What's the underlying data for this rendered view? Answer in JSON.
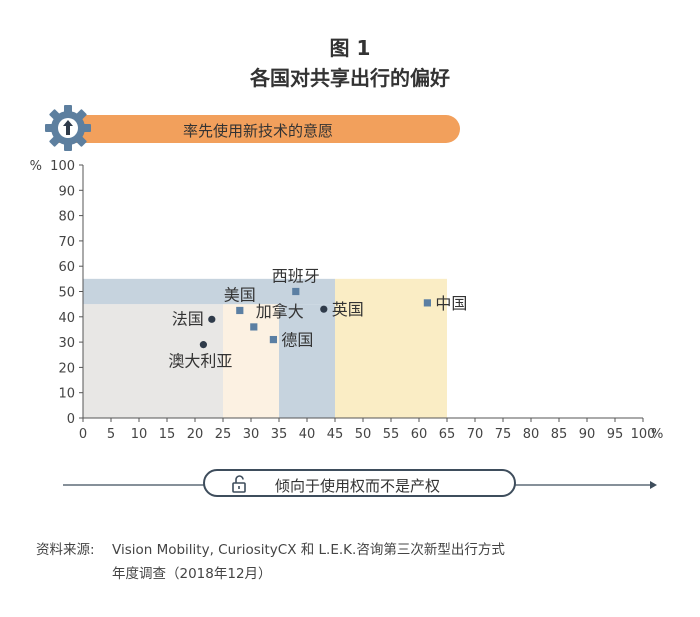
{
  "figure": {
    "label": "图 1",
    "title": "各国对共享出行的偏好"
  },
  "top_banner": {
    "label": "率先使用新技术的意愿",
    "icon": "gear-up-arrow-icon"
  },
  "bottom_banner": {
    "label": "倾向于使用权而不是产权",
    "icon": "unlocked-padlock-icon"
  },
  "source": {
    "label": "资料来源:",
    "line1": "Vision Mobility, CuriosityCX 和 L.E.K.咨询第三次新型出行方式",
    "line2": "年度调查（2018年12月）"
  },
  "colors": {
    "banner_orange": "#f2a05c",
    "point_dark": "#2f3b4a",
    "point_blue": "#5b7fa3",
    "zone_gray": "#e8e7e5",
    "zone_cream": "#fcf1e2",
    "zone_blue": "#c6d3de",
    "zone_yellow": "#faedc5"
  },
  "chart_data": {
    "type": "scatter",
    "xlim": [
      0,
      100
    ],
    "ylim": [
      0,
      100
    ],
    "x_ticks": [
      0,
      5,
      10,
      15,
      20,
      25,
      30,
      35,
      40,
      45,
      50,
      55,
      60,
      65,
      70,
      75,
      80,
      85,
      90,
      95,
      100
    ],
    "y_ticks": [
      0,
      10,
      20,
      30,
      40,
      50,
      60,
      70,
      80,
      90,
      100
    ],
    "x_unit": "%",
    "y_unit": "%",
    "grid": false,
    "zones": [
      {
        "x": [
          0,
          25
        ],
        "y": [
          0,
          45
        ],
        "color": "#e8e7e5"
      },
      {
        "x": [
          25,
          35
        ],
        "y": [
          0,
          45
        ],
        "color": "#fcf1e2"
      },
      {
        "x": [
          0,
          45
        ],
        "y": [
          45,
          55
        ],
        "color": "#c6d3de"
      },
      {
        "x": [
          35,
          45
        ],
        "y": [
          0,
          45
        ],
        "color": "#c6d3de"
      },
      {
        "x": [
          45,
          65
        ],
        "y": [
          0,
          55
        ],
        "color": "#faedc5"
      }
    ],
    "points": [
      {
        "label": "澳大利亚",
        "x": 21.5,
        "y": 29,
        "marker": "circle",
        "label_pos": "below-left"
      },
      {
        "label": "法国",
        "x": 23,
        "y": 39,
        "marker": "circle",
        "label_pos": "left"
      },
      {
        "label": "美国",
        "x": 28,
        "y": 42.5,
        "marker": "square",
        "label_pos": "above"
      },
      {
        "label": "加拿大",
        "x": 30.5,
        "y": 36,
        "marker": "square",
        "label_pos": "above-right"
      },
      {
        "label": "德国",
        "x": 34,
        "y": 31,
        "marker": "square",
        "label_pos": "right"
      },
      {
        "label": "西班牙",
        "x": 38,
        "y": 50,
        "marker": "square",
        "label_pos": "above"
      },
      {
        "label": "英国",
        "x": 43,
        "y": 43,
        "marker": "circle",
        "label_pos": "right"
      },
      {
        "label": "中国",
        "x": 61.5,
        "y": 45.5,
        "marker": "square",
        "label_pos": "right"
      }
    ]
  }
}
